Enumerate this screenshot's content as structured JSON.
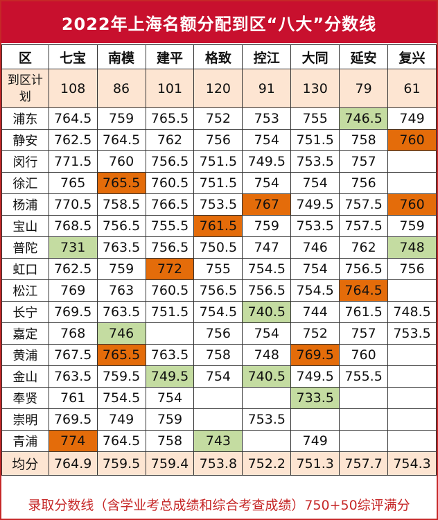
{
  "title": "2022年上海名额分配到区“八大”分数线",
  "footer": "录取分数线（含学业考总成绩和综合考查成绩）750+50综评满分",
  "colors": {
    "title_bg": "#c8102e",
    "high": "#e46c0a",
    "low": "#c4dca1",
    "plan_bg": "#fde5d2",
    "footer_text": "#c62828"
  },
  "table": {
    "header_label": "区",
    "schools": [
      "七宝",
      "南模",
      "建平",
      "格致",
      "控江",
      "大同",
      "延安",
      "复兴"
    ],
    "plan_label": "到区计划",
    "plan": [
      "108",
      "86",
      "101",
      "120",
      "91",
      "130",
      "79",
      "61"
    ],
    "rows": [
      {
        "district": "浦东",
        "scores": [
          "764.5",
          "759",
          "765.5",
          "752",
          "753",
          "755",
          "746.5",
          "749"
        ],
        "marks": [
          "",
          "",
          "",
          "",
          "",
          "",
          "low",
          ""
        ]
      },
      {
        "district": "静安",
        "scores": [
          "762.5",
          "764.5",
          "762",
          "756",
          "754",
          "751.5",
          "758",
          "760"
        ],
        "marks": [
          "",
          "",
          "",
          "",
          "",
          "",
          "",
          "high"
        ]
      },
      {
        "district": "闵行",
        "scores": [
          "771.5",
          "760",
          "756.5",
          "751.5",
          "749.5",
          "753.5",
          "757",
          ""
        ],
        "marks": [
          "",
          "",
          "",
          "",
          "",
          "",
          "",
          ""
        ]
      },
      {
        "district": "徐汇",
        "scores": [
          "765",
          "765.5",
          "760.5",
          "751.5",
          "754",
          "754",
          "756",
          ""
        ],
        "marks": [
          "",
          "high",
          "",
          "",
          "",
          "",
          "",
          ""
        ]
      },
      {
        "district": "杨浦",
        "scores": [
          "770.5",
          "758.5",
          "766.5",
          "753.5",
          "767",
          "749.5",
          "757.5",
          "760"
        ],
        "marks": [
          "",
          "",
          "",
          "",
          "high",
          "",
          "",
          "high"
        ]
      },
      {
        "district": "宝山",
        "scores": [
          "768.5",
          "756.5",
          "755.5",
          "761.5",
          "759",
          "753.5",
          "757.5",
          "759"
        ],
        "marks": [
          "",
          "",
          "",
          "high",
          "",
          "",
          "",
          ""
        ]
      },
      {
        "district": "普陀",
        "scores": [
          "731",
          "763.5",
          "756.5",
          "750.5",
          "747",
          "746",
          "762",
          "748"
        ],
        "marks": [
          "low",
          "",
          "",
          "",
          "",
          "",
          "",
          "low"
        ]
      },
      {
        "district": "虹口",
        "scores": [
          "762.5",
          "759",
          "772",
          "755",
          "754.5",
          "754",
          "756.5",
          "756"
        ],
        "marks": [
          "",
          "",
          "high",
          "",
          "",
          "",
          "",
          ""
        ]
      },
      {
        "district": "松江",
        "scores": [
          "769",
          "763",
          "760.5",
          "756.5",
          "756.5",
          "754.5",
          "764.5",
          ""
        ],
        "marks": [
          "",
          "",
          "",
          "",
          "",
          "",
          "high",
          ""
        ]
      },
      {
        "district": "长宁",
        "scores": [
          "769.5",
          "763.5",
          "751.5",
          "754.5",
          "740.5",
          "744",
          "761.5",
          "748.5"
        ],
        "marks": [
          "",
          "",
          "",
          "",
          "low",
          "",
          "",
          ""
        ]
      },
      {
        "district": "嘉定",
        "scores": [
          "768",
          "746",
          "",
          "756",
          "754",
          "752",
          "757",
          "753.5"
        ],
        "marks": [
          "",
          "low",
          "",
          "",
          "",
          "",
          "",
          ""
        ]
      },
      {
        "district": "黄浦",
        "scores": [
          "767.5",
          "765.5",
          "763.5",
          "758",
          "748",
          "769.5",
          "760",
          ""
        ],
        "marks": [
          "",
          "high",
          "",
          "",
          "",
          "high",
          "",
          ""
        ]
      },
      {
        "district": "金山",
        "scores": [
          "763.5",
          "759.5",
          "749.5",
          "754",
          "740.5",
          "749.5",
          "755.5",
          ""
        ],
        "marks": [
          "",
          "",
          "low",
          "",
          "low",
          "",
          "",
          ""
        ]
      },
      {
        "district": "奉贤",
        "scores": [
          "761",
          "754.5",
          "754",
          "",
          "",
          "733.5",
          "",
          ""
        ],
        "marks": [
          "",
          "",
          "",
          "",
          "",
          "low",
          "",
          ""
        ]
      },
      {
        "district": "崇明",
        "scores": [
          "769.5",
          "749",
          "759",
          "",
          "753.5",
          "",
          "",
          ""
        ],
        "marks": [
          "",
          "",
          "",
          "",
          "",
          "",
          "",
          ""
        ]
      },
      {
        "district": "青浦",
        "scores": [
          "774",
          "764.5",
          "758",
          "743",
          "",
          "749",
          "",
          ""
        ],
        "marks": [
          "high",
          "",
          "",
          "low",
          "",
          "",
          "",
          ""
        ]
      }
    ],
    "avg_label": "均分",
    "averages": [
      "764.9",
      "759.5",
      "759.4",
      "753.8",
      "752.2",
      "751.3",
      "757.7",
      "754.3"
    ]
  }
}
